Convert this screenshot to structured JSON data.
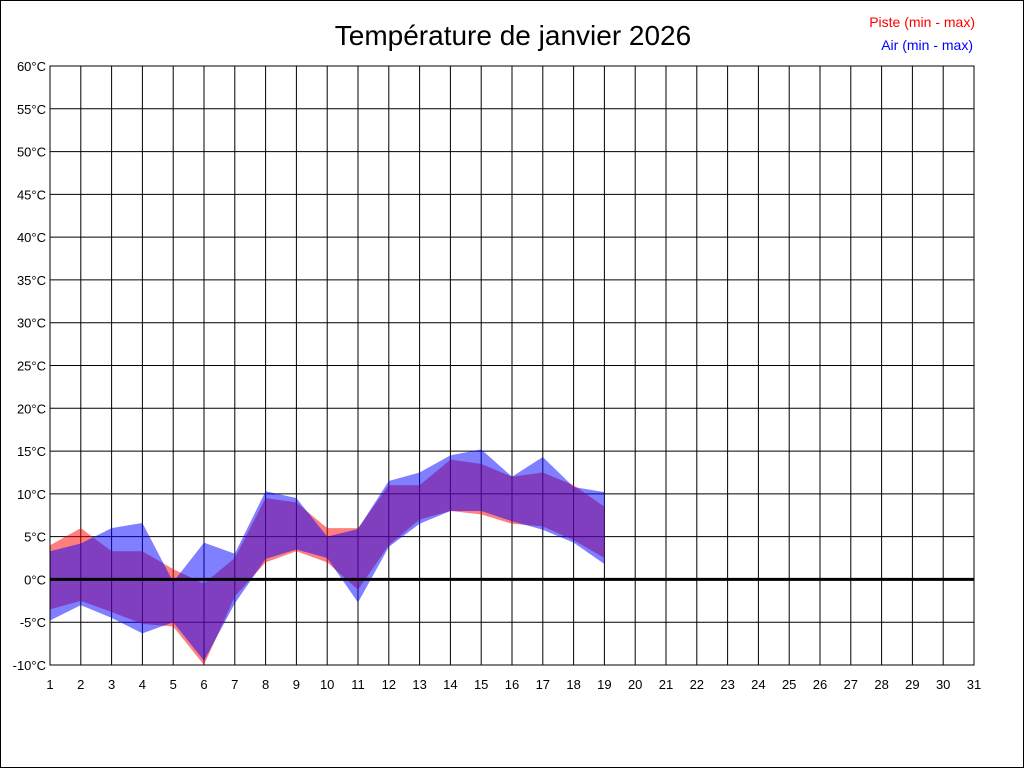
{
  "chart_data": {
    "type": "area",
    "title": "Température de janvier 2026",
    "xlabel": "",
    "ylabel": "",
    "x": [
      1,
      2,
      3,
      4,
      5,
      6,
      7,
      8,
      9,
      10,
      11,
      12,
      13,
      14,
      15,
      16,
      17,
      18,
      19
    ],
    "x_ticks": [
      1,
      2,
      3,
      4,
      5,
      6,
      7,
      8,
      9,
      10,
      11,
      12,
      13,
      14,
      15,
      16,
      17,
      18,
      19,
      20,
      21,
      22,
      23,
      24,
      25,
      26,
      27,
      28,
      29,
      30,
      31
    ],
    "xlim": [
      1,
      31
    ],
    "y_ticks": [
      "60°C",
      "55°C",
      "50°C",
      "45°C",
      "40°C",
      "35°C",
      "30°C",
      "25°C",
      "20°C",
      "15°C",
      "10°C",
      "5°C",
      "0°C",
      "-5°C",
      "-10°C"
    ],
    "ylim": [
      -10,
      60
    ],
    "grid": true,
    "zero_line": true,
    "legend_position": "top-right",
    "series": [
      {
        "name": "Piste (min - max)",
        "color": "#ff0000",
        "min": [
          -3.5,
          -2.5,
          -3.8,
          -5.2,
          -5.5,
          -10.0,
          -2.0,
          2.0,
          3.3,
          2.0,
          -1.2,
          4.0,
          7.0,
          8.0,
          7.6,
          6.5,
          6.2,
          4.6,
          2.5
        ],
        "max": [
          4.0,
          6.0,
          3.3,
          3.3,
          1.2,
          -0.5,
          2.5,
          9.5,
          9.0,
          6.0,
          6.0,
          11.0,
          11.0,
          14.0,
          13.5,
          12.0,
          12.5,
          11.0,
          8.5
        ]
      },
      {
        "name": "Air (min - max)",
        "color": "#0000ff",
        "min": [
          -4.8,
          -3.0,
          -4.5,
          -6.3,
          -5.0,
          -9.5,
          -2.8,
          2.4,
          3.5,
          2.5,
          -2.7,
          3.8,
          6.5,
          8.0,
          8.0,
          6.8,
          5.8,
          4.3,
          1.8
        ],
        "max": [
          3.3,
          4.2,
          6.0,
          6.6,
          -0.3,
          4.3,
          3.0,
          10.3,
          9.5,
          5.0,
          5.9,
          11.5,
          12.5,
          14.5,
          15.2,
          12.0,
          14.3,
          10.8,
          10.2
        ]
      }
    ]
  }
}
